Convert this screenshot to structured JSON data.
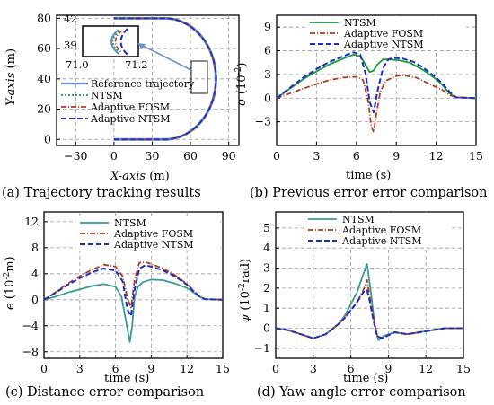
{
  "colors": {
    "reference": "#6f8fcf",
    "ntsm": "#1a9b3c",
    "ntsm_teal": "#3a9a98",
    "fosm": "#b33a1e",
    "ntsm_adaptive": "#1c2cc8",
    "grid": "#9a9a9a",
    "arrow": "#6f8fcf"
  },
  "chart_data": [
    {
      "id": "a",
      "type": "line",
      "caption": "(a) Trajectory tracking results",
      "xlabel_italic": "X-axis",
      "xlabel_unit": " (m)",
      "ylabel_italic": "Y-axis",
      "ylabel_unit": " (m)",
      "xlim": [
        -45,
        98
      ],
      "ylim": [
        -4,
        82
      ],
      "xticks": [
        -30,
        0,
        30,
        60,
        90
      ],
      "yticks": [
        0,
        20,
        40,
        60,
        80
      ],
      "legend": [
        "Reference trajectory",
        "NTSM",
        "Adaptive FOSM",
        "Adaptive NTSM"
      ],
      "legend_position": "middle-right",
      "inset": {
        "xticks": [
          "71.0",
          "71.2"
        ],
        "yticks": [
          "42",
          "39"
        ]
      },
      "trajectory": {
        "start": [
          0,
          0
        ],
        "straight_to_x": 40,
        "arc_center": [
          40,
          40
        ],
        "arc_radius": 40,
        "end": [
          0,
          80
        ]
      }
    },
    {
      "id": "b",
      "type": "line",
      "caption": "(b) Previous error error comparison",
      "xlabel": "time (s)",
      "ylabel_italic": "σ",
      "ylabel_unit": " (10",
      "ylabel_exp": "-2",
      "ylabel_end": ")",
      "xlim": [
        0,
        15
      ],
      "ylim": [
        -6,
        10.5
      ],
      "xticks": [
        0,
        3,
        6,
        9,
        12,
        15
      ],
      "yticks": [
        -3,
        0,
        3,
        6,
        9
      ],
      "legend_position": "top-right",
      "series": [
        {
          "name": "NTSM",
          "x": [
            0,
            1,
            2,
            3,
            4,
            5,
            5.8,
            6.3,
            6.7,
            7,
            7.3,
            7.6,
            8,
            8.5,
            9.2,
            10,
            11,
            12,
            12.5,
            13,
            13.5,
            15
          ],
          "y": [
            0,
            1.2,
            2.4,
            3.4,
            4.3,
            5.0,
            5.5,
            5.3,
            4.2,
            3.3,
            3.5,
            4.3,
            4.9,
            4.9,
            4.8,
            4.5,
            3.6,
            2.4,
            1.6,
            0.6,
            0.1,
            0
          ]
        },
        {
          "name": "Adaptive FOSM",
          "x": [
            0,
            1,
            2,
            3,
            4,
            5,
            6,
            6.5,
            6.9,
            7.1,
            7.3,
            7.5,
            7.8,
            8.2,
            9,
            9.5,
            10.5,
            11.5,
            12.5,
            13,
            13.5,
            15
          ],
          "y": [
            0,
            0.6,
            1.2,
            1.8,
            2.3,
            2.6,
            2.7,
            2.3,
            -0.5,
            -3.5,
            -4.3,
            -2.0,
            0.8,
            2.2,
            2.8,
            2.9,
            2.6,
            1.8,
            1.0,
            0.4,
            0.1,
            0
          ]
        },
        {
          "name": "Adaptive NTSM",
          "x": [
            0,
            1,
            2,
            3,
            4,
            5,
            5.8,
            6.3,
            6.7,
            7,
            7.3,
            7.6,
            8,
            8.4,
            8.8,
            9.5,
            10.3,
            11,
            12,
            12.5,
            13,
            13.5,
            15
          ],
          "y": [
            0,
            1.3,
            2.6,
            3.7,
            4.6,
            5.3,
            5.8,
            5.5,
            3.0,
            -0.5,
            -1.8,
            1.0,
            3.8,
            4.9,
            5.1,
            5.0,
            4.6,
            3.9,
            2.6,
            1.8,
            0.8,
            0.1,
            0
          ]
        }
      ]
    },
    {
      "id": "c",
      "type": "line",
      "caption": "(c) Distance error comparison",
      "xlabel": "time (s)",
      "ylabel_italic": "e",
      "ylabel_unit": " (10",
      "ylabel_exp": "-2",
      "ylabel_end": "m)",
      "xlim": [
        0,
        15
      ],
      "ylim": [
        -9,
        13.5
      ],
      "xticks": [
        0,
        3,
        6,
        9,
        12,
        15
      ],
      "yticks": [
        -8,
        -4,
        0,
        4,
        8,
        12
      ],
      "legend_position": "top-right",
      "series": [
        {
          "name": "NTSM",
          "x": [
            0,
            1,
            2,
            3,
            4,
            5,
            6,
            6.5,
            7,
            7.2,
            7.4,
            7.6,
            7.9,
            8.3,
            9,
            10,
            11,
            12,
            12.5,
            13,
            13.5,
            15
          ],
          "y": [
            0,
            0.5,
            1.1,
            1.6,
            2.1,
            2.4,
            2.0,
            0.5,
            -4.5,
            -6.5,
            -4.0,
            0.5,
            2.0,
            2.7,
            3.1,
            3.0,
            2.5,
            1.8,
            1.2,
            0.5,
            0.1,
            0
          ]
        },
        {
          "name": "Adaptive FOSM",
          "x": [
            0,
            1,
            2,
            3,
            4,
            5,
            6,
            6.6,
            7,
            7.3,
            7.6,
            8,
            8.5,
            9,
            10,
            11,
            12,
            12.5,
            13,
            13.5,
            15
          ],
          "y": [
            0,
            1.2,
            2.5,
            3.6,
            4.6,
            5.4,
            5.1,
            3.6,
            0.2,
            -1.2,
            3.0,
            5.7,
            5.8,
            5.5,
            4.8,
            3.8,
            2.4,
            1.5,
            0.6,
            0.1,
            0
          ]
        },
        {
          "name": "Adaptive NTSM",
          "x": [
            0,
            1,
            2,
            3,
            4,
            5,
            6,
            6.6,
            7,
            7.3,
            7.6,
            8,
            8.5,
            9,
            10,
            11,
            12,
            12.5,
            13,
            13.5,
            15
          ],
          "y": [
            0,
            1.1,
            2.3,
            3.3,
            4.2,
            4.8,
            4.5,
            2.8,
            -1.5,
            -2.5,
            1.5,
            4.8,
            5.3,
            5.1,
            4.5,
            3.6,
            2.3,
            1.4,
            0.6,
            0.1,
            0
          ]
        }
      ]
    },
    {
      "id": "d",
      "type": "line",
      "caption": "(d) Yaw angle error comparison",
      "xlabel": "time (s)",
      "ylabel_italic": "ψ",
      "ylabel_unit": " (10",
      "ylabel_exp": "-2",
      "ylabel_end": "rad)",
      "xlim": [
        0,
        15
      ],
      "ylim": [
        -1.5,
        5.8
      ],
      "xticks": [
        0,
        3,
        6,
        9,
        12,
        15
      ],
      "yticks": [
        -1,
        0,
        1,
        2,
        3,
        4,
        5
      ],
      "legend_position": "top-right",
      "series": [
        {
          "name": "NTSM",
          "x": [
            0,
            1,
            2,
            3,
            4,
            5,
            5.5,
            6,
            6.5,
            7,
            7.3,
            7.6,
            7.9,
            8.2,
            8.6,
            9.5,
            10.5,
            11.5,
            12.5,
            13.5,
            15
          ],
          "y": [
            0,
            -0.1,
            -0.3,
            -0.5,
            -0.3,
            0.2,
            0.6,
            1.2,
            1.8,
            2.7,
            3.2,
            1.8,
            0.2,
            -0.6,
            -0.4,
            -0.2,
            -0.3,
            -0.2,
            -0.1,
            0,
            0
          ]
        },
        {
          "name": "Adaptive FOSM",
          "x": [
            0,
            1,
            2,
            3,
            4,
            5,
            5.5,
            6,
            6.5,
            7,
            7.3,
            7.5,
            7.8,
            8.1,
            8.5,
            9.5,
            10.5,
            11.5,
            12.5,
            13.5,
            15
          ],
          "y": [
            0,
            -0.1,
            -0.3,
            -0.5,
            -0.3,
            0.2,
            0.5,
            0.9,
            1.3,
            1.9,
            2.4,
            1.6,
            0.6,
            -0.4,
            -0.5,
            -0.2,
            -0.3,
            -0.2,
            -0.1,
            0,
            0
          ]
        },
        {
          "name": "Adaptive NTSM",
          "x": [
            0,
            1,
            2,
            3,
            4,
            5,
            5.5,
            6,
            6.5,
            7,
            7.3,
            7.5,
            7.8,
            8.1,
            8.5,
            9.5,
            10.5,
            11.5,
            12.5,
            13.5,
            15
          ],
          "y": [
            0,
            -0.1,
            -0.3,
            -0.5,
            -0.3,
            0.2,
            0.5,
            0.9,
            1.3,
            1.8,
            1.9,
            1.4,
            0.4,
            -0.4,
            -0.5,
            -0.2,
            -0.3,
            -0.2,
            -0.1,
            0,
            0
          ]
        }
      ]
    }
  ]
}
